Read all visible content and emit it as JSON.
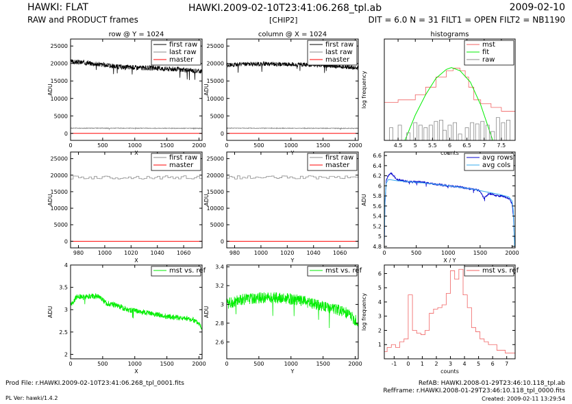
{
  "header": {
    "title": "HAWKI: FLAT",
    "subtitle": "RAW and PRODUCT frames",
    "file": "HAWKI.2009-02-10T23:41:06.268_tpl.ab",
    "chip": "[CHIP2]",
    "date": "2009-02-10",
    "params": "DIT = 6.0 N = 31 FILT1 = OPEN FILT2 = NB1190"
  },
  "footer": {
    "prod_file": "Prod File: r.HAWKI.2009-02-10T23:41:06.268_tpl_0001.fits",
    "pl_ver": "PL Ver: hawki/1.4.2",
    "refab": "RefAB: HAWKI.2008-01-29T23:46:10.118_tpl.ab",
    "refframe": "RefFrame: r.HAWKI.2008-01-29T23:46:10.118_tpl_0000.fits",
    "created": "Created: 2009-02-11 13:29:54"
  },
  "colors": {
    "black": "#000000",
    "gray": "#888888",
    "red": "#ff0000",
    "green": "#00ee00",
    "lightred": "#f06060",
    "blue": "#0000cc",
    "cyan": "#33aaee"
  },
  "chart_data": [
    {
      "id": "row-full",
      "type": "line",
      "title": "row @ Y = 1024",
      "xlabel": "X",
      "ylabel": "ADU",
      "xlim": [
        0,
        2048
      ],
      "ylim": [
        -2000,
        27000
      ],
      "xticks": [
        0,
        500,
        1000,
        1500,
        2000
      ],
      "yticks": [
        0,
        5000,
        10000,
        15000,
        20000,
        25000
      ],
      "legend": "top-right",
      "series": [
        {
          "name": "first raw",
          "color": "black",
          "x": [
            0,
            200,
            400,
            600,
            800,
            1000,
            1200,
            1400,
            1600,
            1800,
            2048
          ],
          "y": [
            20500,
            20300,
            19900,
            19400,
            19000,
            18900,
            18700,
            18600,
            18400,
            18100,
            17800
          ],
          "noise": 700
        },
        {
          "name": "last raw",
          "color": "gray",
          "x": [
            0,
            2048
          ],
          "y": [
            1500,
            1450
          ],
          "noise": 100
        },
        {
          "name": "master",
          "color": "red",
          "x": [
            0,
            2048
          ],
          "y": [
            0,
            0
          ]
        }
      ]
    },
    {
      "id": "col-full",
      "type": "line",
      "title": "column @ X = 1024",
      "xlabel": "Y",
      "ylabel": "ADU",
      "xlim": [
        0,
        2048
      ],
      "ylim": [
        -2000,
        27000
      ],
      "xticks": [
        0,
        500,
        1000,
        1500,
        2000
      ],
      "yticks": [
        0,
        5000,
        10000,
        15000,
        20000,
        25000
      ],
      "legend": "top-right",
      "series": [
        {
          "name": "first raw",
          "color": "black",
          "x": [
            0,
            300,
            600,
            900,
            1200,
            1500,
            1800,
            2048
          ],
          "y": [
            19600,
            19800,
            19900,
            19800,
            19700,
            19400,
            19100,
            18800
          ],
          "noise": 600
        },
        {
          "name": "last raw",
          "color": "gray",
          "x": [
            0,
            2048
          ],
          "y": [
            1500,
            1450
          ],
          "noise": 100
        },
        {
          "name": "master",
          "color": "red",
          "x": [
            0,
            2048
          ],
          "y": [
            0,
            0
          ]
        }
      ]
    },
    {
      "id": "histograms",
      "type": "line",
      "title": "histograms",
      "xlabel": "counts",
      "ylabel": "log frequency",
      "xlim": [
        4.1,
        7.9
      ],
      "ylim": [
        0,
        8
      ],
      "xticks": [
        4.5,
        5,
        5.5,
        6,
        6.5,
        7,
        7.5
      ],
      "yticks": [],
      "legend": "top-right",
      "series": [
        {
          "name": "mst",
          "color": "lightred",
          "kind": "step",
          "x": [
            4.1,
            4.5,
            5.0,
            5.3,
            5.6,
            5.9,
            6.1,
            6.3,
            6.45,
            6.55,
            6.7,
            6.9,
            7.2,
            7.5,
            7.9
          ],
          "y": [
            3.0,
            3.2,
            3.6,
            4.2,
            5.0,
            5.5,
            5.7,
            5.5,
            5.0,
            4.2,
            3.2,
            2.9,
            2.6,
            2.3,
            2.0
          ]
        },
        {
          "name": "fit",
          "color": "green",
          "kind": "curve",
          "x": [
            4.7,
            5.0,
            5.3,
            5.6,
            5.9,
            6.05,
            6.3,
            6.6,
            6.9,
            7.1,
            7.25
          ],
          "y": [
            0,
            2.0,
            3.6,
            4.9,
            5.6,
            5.75,
            5.5,
            4.6,
            2.8,
            1.2,
            0
          ]
        },
        {
          "name": "raw",
          "color": "gray",
          "kind": "bars",
          "x": [
            4.3,
            4.55,
            4.8,
            5.0,
            5.15,
            5.3,
            5.45,
            5.6,
            5.75,
            5.85,
            6.0,
            6.15,
            6.3,
            6.5,
            6.65,
            6.8,
            6.95,
            7.1,
            7.25,
            7.4,
            7.55,
            7.7
          ],
          "y": [
            1,
            1.2,
            0.6,
            1.4,
            1.2,
            1,
            1.2,
            1.5,
            1.6,
            0.8,
            1.2,
            1.4,
            0.5,
            1,
            1.4,
            1.3,
            1.5,
            1.2,
            0.7,
            1.8,
            1.4,
            1.6
          ]
        }
      ]
    },
    {
      "id": "row-zoom",
      "type": "line",
      "title": "",
      "xlabel": "X",
      "ylabel": "ADU",
      "xlim": [
        974,
        1074
      ],
      "ylim": [
        -2000,
        27000
      ],
      "xticks": [
        980,
        1000,
        1020,
        1040,
        1060
      ],
      "yticks": [
        0,
        5000,
        10000,
        15000,
        20000,
        25000
      ],
      "legend": "top-right",
      "series": [
        {
          "name": "first raw",
          "color": "gray",
          "kind": "pixel",
          "x": [
            974,
            1074
          ],
          "y": [
            19300,
            19300
          ],
          "noise": 500
        },
        {
          "name": "master",
          "color": "red",
          "x": [
            974,
            1074
          ],
          "y": [
            0,
            0
          ]
        }
      ]
    },
    {
      "id": "col-zoom",
      "type": "line",
      "title": "",
      "xlabel": "Y",
      "ylabel": "ADU",
      "xlim": [
        974,
        1074
      ],
      "ylim": [
        -2000,
        27000
      ],
      "xticks": [
        980,
        1000,
        1020,
        1040,
        1060
      ],
      "yticks": [
        0,
        5000,
        10000,
        15000,
        20000,
        25000
      ],
      "legend": "top-right",
      "series": [
        {
          "name": "first raw",
          "color": "gray",
          "kind": "pixel",
          "x": [
            974,
            1074
          ],
          "y": [
            19300,
            19300
          ],
          "noise": 500
        },
        {
          "name": "master",
          "color": "red",
          "x": [
            974,
            1074
          ],
          "y": [
            0,
            0
          ]
        }
      ]
    },
    {
      "id": "avg",
      "type": "line",
      "title": "",
      "xlabel": "X / Y",
      "ylabel": "ADU",
      "xlim": [
        0,
        2048
      ],
      "ylim": [
        4.77,
        6.67
      ],
      "xticks": [
        0,
        500,
        1000,
        1500,
        2000
      ],
      "yticks": [
        4.8,
        5,
        5.2,
        5.4,
        5.6,
        5.8,
        6,
        6.2,
        6.4,
        6.6
      ],
      "legend": "top-right",
      "series": [
        {
          "name": "avg rows",
          "color": "blue",
          "x": [
            0,
            10,
            30,
            60,
            100,
            150,
            200,
            300,
            400,
            600,
            800,
            1000,
            1200,
            1400,
            1500,
            1560,
            1640,
            1750,
            1850,
            1950,
            2000,
            2020,
            2040,
            2048
          ],
          "y": [
            4.8,
            5.6,
            6.1,
            6.2,
            6.25,
            6.2,
            6.12,
            6.1,
            6.08,
            6.07,
            6.03,
            6.0,
            5.97,
            5.93,
            5.9,
            5.75,
            5.85,
            5.8,
            5.8,
            5.75,
            5.65,
            5.4,
            4.8,
            4.8
          ],
          "noise": 0.02
        },
        {
          "name": "avg cols",
          "color": "cyan",
          "x": [
            0,
            10,
            30,
            60,
            100,
            200,
            400,
            600,
            800,
            1000,
            1200,
            1400,
            1600,
            1800,
            1950,
            2000,
            2020,
            2040,
            2048
          ],
          "y": [
            4.8,
            5.7,
            6.05,
            6.12,
            6.12,
            6.1,
            6.08,
            6.06,
            6.03,
            6.0,
            5.97,
            5.93,
            5.88,
            5.83,
            5.78,
            5.7,
            5.5,
            4.8,
            4.8
          ]
        }
      ]
    },
    {
      "id": "mst-ref-row",
      "type": "line",
      "title": "",
      "xlabel": "X",
      "ylabel": "ADU",
      "xlim": [
        0,
        2048
      ],
      "ylim": [
        1.9,
        4.0
      ],
      "xticks": [
        0,
        500,
        1000,
        1500,
        2000
      ],
      "yticks": [
        2,
        2.5,
        3,
        3.5,
        4
      ],
      "legend": "top-right",
      "series": [
        {
          "name": "mst vs. ref",
          "color": "green",
          "x": [
            0,
            100,
            200,
            300,
            450,
            550,
            700,
            900,
            1100,
            1300,
            1500,
            1700,
            1900,
            2000,
            2048
          ],
          "y": [
            3.1,
            3.3,
            3.28,
            3.3,
            3.3,
            3.15,
            3.1,
            3.0,
            2.95,
            2.9,
            2.85,
            2.82,
            2.78,
            2.7,
            2.6
          ],
          "noise": 0.06
        }
      ]
    },
    {
      "id": "mst-ref-col",
      "type": "line",
      "title": "",
      "xlabel": "Y",
      "ylabel": "ADU",
      "xlim": [
        0,
        2048
      ],
      "ylim": [
        2.42,
        3.42
      ],
      "xticks": [
        0,
        500,
        1000,
        1500,
        2000
      ],
      "yticks": [
        2.6,
        2.8,
        3,
        3.2,
        3.4
      ],
      "legend": "top-right",
      "series": [
        {
          "name": "mst vs. ref",
          "color": "green",
          "x": [
            0,
            200,
            500,
            800,
            1100,
            1400,
            1700,
            1900,
            2048
          ],
          "y": [
            3.0,
            3.05,
            3.07,
            3.07,
            3.05,
            3.0,
            2.95,
            2.9,
            2.8
          ],
          "noise": 0.06
        }
      ]
    },
    {
      "id": "mst-ref-hist",
      "type": "line",
      "title": "",
      "xlabel": "counts",
      "ylabel": "log frequency",
      "xlim": [
        -1.7,
        7.6
      ],
      "ylim": [
        0,
        6.6
      ],
      "xticks": [
        -1,
        0,
        1,
        2,
        3,
        4,
        5,
        6,
        7
      ],
      "yticks": [
        1,
        2,
        3,
        4,
        5,
        6
      ],
      "legend": "top-right",
      "series": [
        {
          "name": "mst vs. ref",
          "color": "lightred",
          "kind": "step",
          "x": [
            -1.7,
            -1.5,
            -1.2,
            -0.9,
            -0.6,
            -0.3,
            0,
            0.3,
            0.6,
            0.9,
            1.2,
            1.5,
            1.8,
            2.1,
            2.4,
            2.7,
            3.0,
            3.3,
            3.6,
            3.9,
            4.2,
            4.5,
            4.8,
            5.1,
            5.4,
            5.7,
            6.0,
            6.3,
            6.6,
            6.9,
            7.2,
            7.6
          ],
          "y": [
            0.5,
            0.8,
            1.0,
            0.8,
            1.2,
            1.4,
            4.5,
            2.0,
            1.8,
            1.7,
            2.0,
            3.2,
            3.5,
            3.6,
            3.8,
            4.6,
            6.2,
            5.6,
            6.3,
            4.5,
            3.6,
            2.2,
            1.9,
            1.4,
            1.2,
            1.0,
            1.0,
            0.6,
            0.6,
            0.4,
            0.4,
            0.3
          ]
        }
      ]
    }
  ]
}
